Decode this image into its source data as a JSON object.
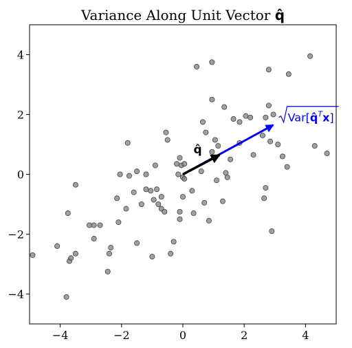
{
  "chart_data": {
    "type": "scatter",
    "title": "Variance Along Unit Vector ",
    "title_symbol": "q̂",
    "xlabel": "",
    "ylabel": "",
    "xlim": [
      -5,
      5
    ],
    "ylim": [
      -5,
      5
    ],
    "x_ticks": [
      -4,
      -2,
      0,
      2,
      4
    ],
    "y_ticks": [
      -4,
      -2,
      0,
      2,
      4
    ],
    "grid": false,
    "points": [
      {
        "x": -4.9,
        "y": -2.7
      },
      {
        "x": -4.1,
        "y": -2.4
      },
      {
        "x": -3.8,
        "y": -4.1
      },
      {
        "x": -3.75,
        "y": -1.3
      },
      {
        "x": -3.7,
        "y": -2.9
      },
      {
        "x": -3.65,
        "y": -2.8
      },
      {
        "x": -3.5,
        "y": -0.35
      },
      {
        "x": -3.5,
        "y": -2.65
      },
      {
        "x": -3.05,
        "y": -1.7
      },
      {
        "x": -2.9,
        "y": -1.7
      },
      {
        "x": -2.9,
        "y": -2.15
      },
      {
        "x": -2.7,
        "y": -1.7
      },
      {
        "x": -2.45,
        "y": -3.25
      },
      {
        "x": -2.4,
        "y": -2.65
      },
      {
        "x": -2.35,
        "y": -2.45
      },
      {
        "x": -2.15,
        "y": -0.8
      },
      {
        "x": -2.1,
        "y": -1.6
      },
      {
        "x": -2.05,
        "y": 0.0
      },
      {
        "x": -1.85,
        "y": -1.15
      },
      {
        "x": -1.8,
        "y": 1.05
      },
      {
        "x": -1.75,
        "y": -0.05
      },
      {
        "x": -1.6,
        "y": -0.6
      },
      {
        "x": -1.5,
        "y": 0.1
      },
      {
        "x": -1.5,
        "y": -2.3
      },
      {
        "x": -1.35,
        "y": -1.0
      },
      {
        "x": -1.2,
        "y": 0.0
      },
      {
        "x": -1.2,
        "y": -0.5
      },
      {
        "x": -1.05,
        "y": -0.55
      },
      {
        "x": -1.0,
        "y": -2.75
      },
      {
        "x": -0.95,
        "y": -0.85
      },
      {
        "x": -0.9,
        "y": 0.3
      },
      {
        "x": -0.85,
        "y": -0.5
      },
      {
        "x": -0.8,
        "y": -1.0
      },
      {
        "x": -0.7,
        "y": -0.75
      },
      {
        "x": -0.7,
        "y": -1.15
      },
      {
        "x": -0.6,
        "y": -1.25
      },
      {
        "x": -0.55,
        "y": 1.4
      },
      {
        "x": -0.5,
        "y": 1.15
      },
      {
        "x": -0.4,
        "y": -2.65
      },
      {
        "x": -0.3,
        "y": -2.25
      },
      {
        "x": -0.2,
        "y": 0.35
      },
      {
        "x": -0.15,
        "y": 0.0
      },
      {
        "x": -0.1,
        "y": 0.55
      },
      {
        "x": -0.1,
        "y": -1.25
      },
      {
        "x": -0.1,
        "y": -1.5
      },
      {
        "x": -0.05,
        "y": 0.3
      },
      {
        "x": 0.0,
        "y": -0.1
      },
      {
        "x": 0.0,
        "y": -0.75
      },
      {
        "x": 0.05,
        "y": 0.35
      },
      {
        "x": 0.05,
        "y": -0.15
      },
      {
        "x": 0.3,
        "y": -0.55
      },
      {
        "x": 0.35,
        "y": -1.3
      },
      {
        "x": 0.45,
        "y": 3.6
      },
      {
        "x": 0.6,
        "y": 0.1
      },
      {
        "x": 0.65,
        "y": 1.75
      },
      {
        "x": 0.7,
        "y": -0.95
      },
      {
        "x": 0.75,
        "y": 1.4
      },
      {
        "x": 0.85,
        "y": -1.55
      },
      {
        "x": 0.95,
        "y": 0.75
      },
      {
        "x": 0.95,
        "y": 3.75
      },
      {
        "x": 0.95,
        "y": 2.5
      },
      {
        "x": 1.05,
        "y": 1.15
      },
      {
        "x": 1.1,
        "y": -0.2
      },
      {
        "x": 1.15,
        "y": 0.95
      },
      {
        "x": 1.3,
        "y": -0.9
      },
      {
        "x": 1.35,
        "y": 2.25
      },
      {
        "x": 1.4,
        "y": 0.05
      },
      {
        "x": 1.45,
        "y": -0.1
      },
      {
        "x": 1.55,
        "y": 0.5
      },
      {
        "x": 1.65,
        "y": 1.85
      },
      {
        "x": 1.85,
        "y": 1.75
      },
      {
        "x": 1.85,
        "y": 1.05
      },
      {
        "x": 2.05,
        "y": 1.95
      },
      {
        "x": 2.2,
        "y": 1.9
      },
      {
        "x": 2.3,
        "y": 0.65
      },
      {
        "x": 2.6,
        "y": 1.3
      },
      {
        "x": 2.65,
        "y": -0.8
      },
      {
        "x": 2.7,
        "y": 1.9
      },
      {
        "x": 2.7,
        "y": -0.45
      },
      {
        "x": 2.8,
        "y": 2.3
      },
      {
        "x": 2.8,
        "y": 3.5
      },
      {
        "x": 2.85,
        "y": 1.1
      },
      {
        "x": 2.9,
        "y": -1.9
      },
      {
        "x": 2.95,
        "y": 2.0
      },
      {
        "x": 3.1,
        "y": 1.0
      },
      {
        "x": 3.25,
        "y": 0.6
      },
      {
        "x": 3.4,
        "y": 0.25
      },
      {
        "x": 3.45,
        "y": 3.35
      },
      {
        "x": 4.15,
        "y": 3.95
      },
      {
        "x": 4.3,
        "y": 0.95
      },
      {
        "x": 4.7,
        "y": 0.7
      }
    ],
    "point_color": "#808080",
    "unit_vector": {
      "label": "q̂",
      "from": [
        0,
        0
      ],
      "to": [
        1.2,
        0.65
      ],
      "color": "#000000"
    },
    "variance_vector": {
      "label_prefix": "Var[",
      "label_q": "q̂",
      "label_T": "T",
      "label_x": "x",
      "label_suffix": "]",
      "from": [
        0,
        0
      ],
      "to": [
        2.95,
        1.65
      ],
      "color": "#0000ff"
    }
  }
}
